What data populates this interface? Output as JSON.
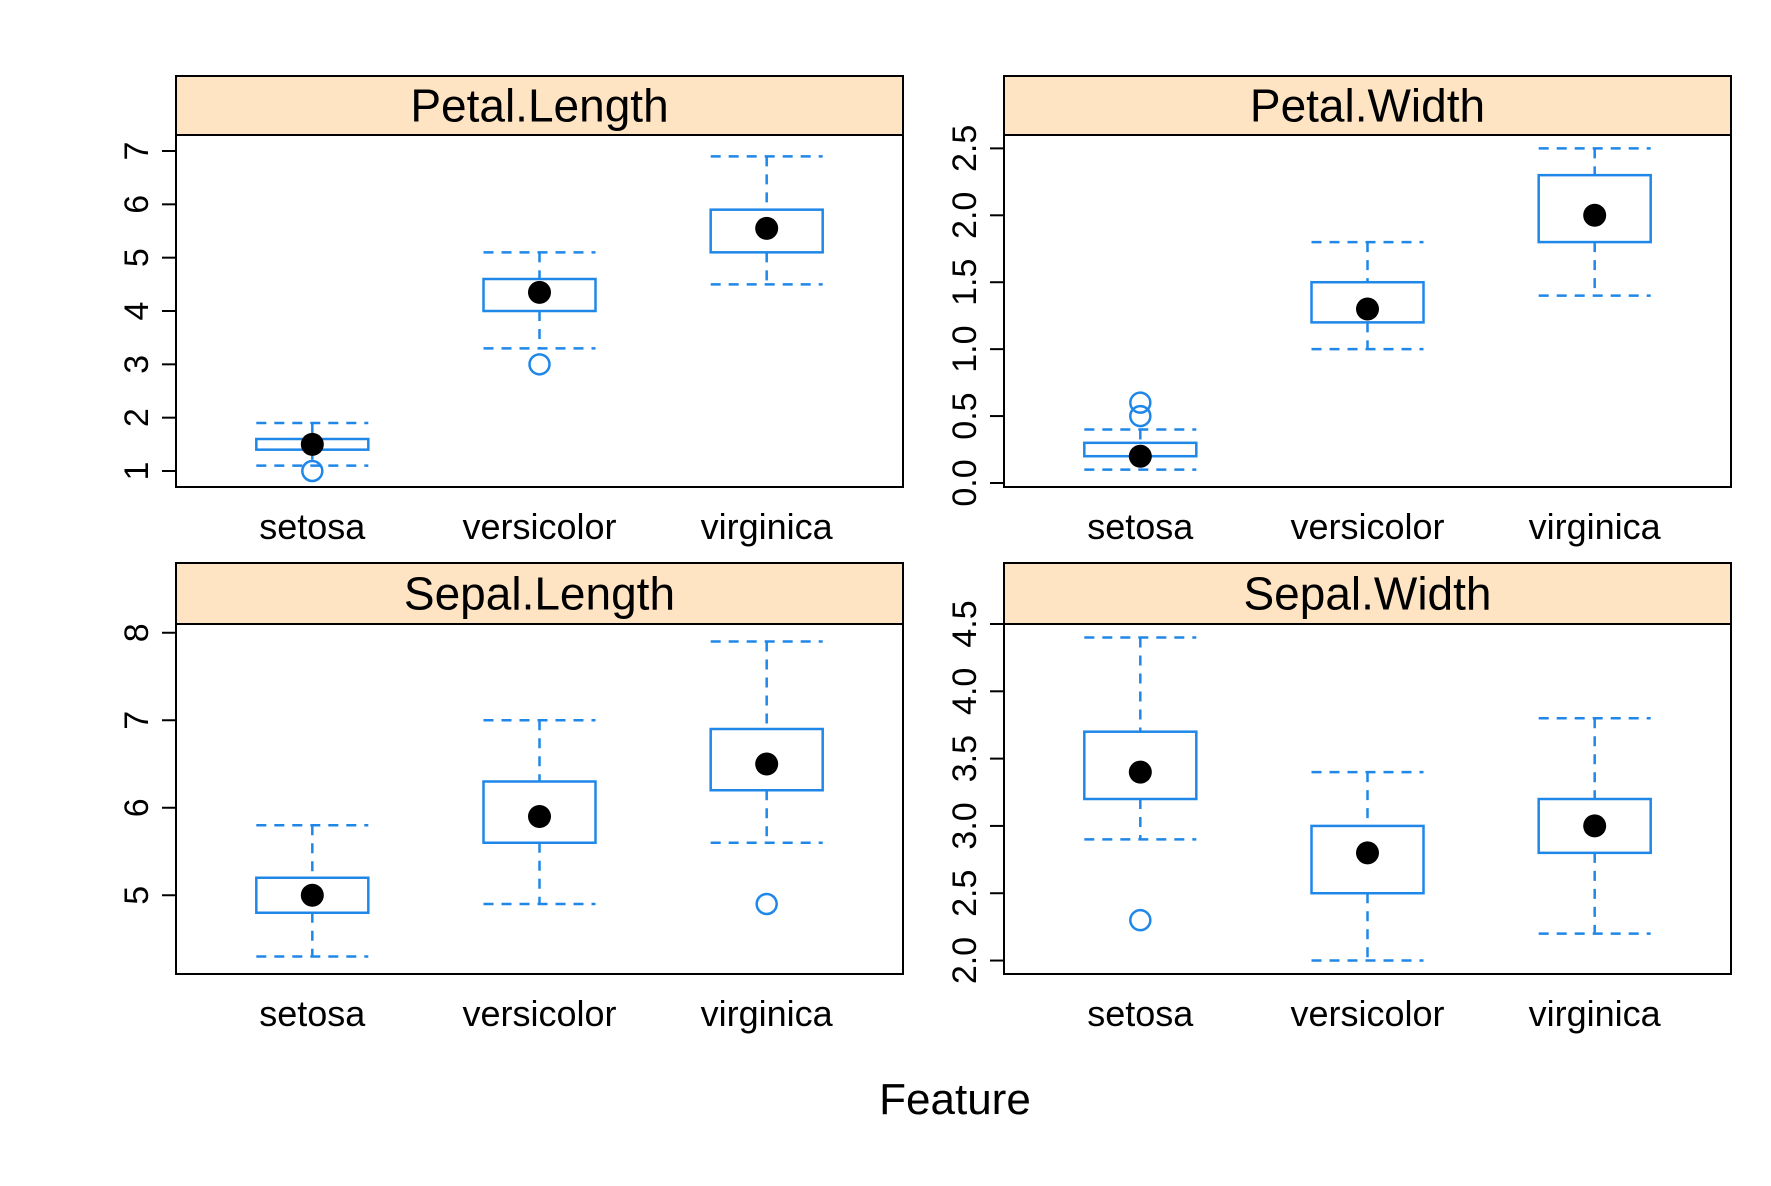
{
  "chart_data": {
    "type": "box",
    "xlabel": "Feature",
    "categories": [
      "setosa",
      "versicolor",
      "virginica"
    ],
    "colors": {
      "box": "#1f87e8",
      "median_dot": "#000000",
      "strip_fill": "#ffe4c4",
      "frame": "#000000"
    },
    "panels": [
      {
        "title": "Petal.Length",
        "ylim": [
          0.7,
          7.3
        ],
        "yticks": [
          1,
          2,
          3,
          4,
          5,
          6,
          7
        ],
        "yticklabels": [
          "1",
          "2",
          "3",
          "4",
          "5",
          "6",
          "7"
        ],
        "boxes": [
          {
            "category": "setosa",
            "whisker_low": 1.1,
            "q1": 1.4,
            "median": 1.5,
            "q3": 1.6,
            "whisker_high": 1.9,
            "outliers": [
              1.0
            ]
          },
          {
            "category": "versicolor",
            "whisker_low": 3.3,
            "q1": 4.0,
            "median": 4.35,
            "q3": 4.6,
            "whisker_high": 5.1,
            "outliers": [
              3.0
            ]
          },
          {
            "category": "virginica",
            "whisker_low": 4.5,
            "q1": 5.1,
            "median": 5.55,
            "q3": 5.9,
            "whisker_high": 6.9,
            "outliers": []
          }
        ]
      },
      {
        "title": "Petal.Width",
        "ylim": [
          -0.03,
          2.6
        ],
        "yticks": [
          0.0,
          0.5,
          1.0,
          1.5,
          2.0,
          2.5
        ],
        "yticklabels": [
          "0.0",
          "0.5",
          "1.0",
          "1.5",
          "2.0",
          "2.5"
        ],
        "boxes": [
          {
            "category": "setosa",
            "whisker_low": 0.1,
            "q1": 0.2,
            "median": 0.2,
            "q3": 0.3,
            "whisker_high": 0.4,
            "outliers": [
              0.5,
              0.6
            ]
          },
          {
            "category": "versicolor",
            "whisker_low": 1.0,
            "q1": 1.2,
            "median": 1.3,
            "q3": 1.5,
            "whisker_high": 1.8,
            "outliers": []
          },
          {
            "category": "virginica",
            "whisker_low": 1.4,
            "q1": 1.8,
            "median": 2.0,
            "q3": 2.3,
            "whisker_high": 2.5,
            "outliers": []
          }
        ]
      },
      {
        "title": "Sepal.Length",
        "ylim": [
          4.1,
          8.1
        ],
        "yticks": [
          5,
          6,
          7,
          8
        ],
        "yticklabels": [
          "5",
          "6",
          "7",
          "8"
        ],
        "boxes": [
          {
            "category": "setosa",
            "whisker_low": 4.3,
            "q1": 4.8,
            "median": 5.0,
            "q3": 5.2,
            "whisker_high": 5.8,
            "outliers": []
          },
          {
            "category": "versicolor",
            "whisker_low": 4.9,
            "q1": 5.6,
            "median": 5.9,
            "q3": 6.3,
            "whisker_high": 7.0,
            "outliers": []
          },
          {
            "category": "virginica",
            "whisker_low": 5.6,
            "q1": 6.2,
            "median": 6.5,
            "q3": 6.9,
            "whisker_high": 7.9,
            "outliers": [
              4.9
            ]
          }
        ]
      },
      {
        "title": "Sepal.Width",
        "ylim": [
          1.9,
          4.5
        ],
        "yticks": [
          2.0,
          2.5,
          3.0,
          3.5,
          4.0,
          4.5
        ],
        "yticklabels": [
          "2.0",
          "2.5",
          "3.0",
          "3.5",
          "4.0",
          "4.5"
        ],
        "boxes": [
          {
            "category": "setosa",
            "whisker_low": 2.9,
            "q1": 3.2,
            "median": 3.4,
            "q3": 3.7,
            "whisker_high": 4.4,
            "outliers": [
              2.3
            ]
          },
          {
            "category": "versicolor",
            "whisker_low": 2.0,
            "q1": 2.5,
            "median": 2.8,
            "q3": 3.0,
            "whisker_high": 3.4,
            "outliers": []
          },
          {
            "category": "virginica",
            "whisker_low": 2.2,
            "q1": 2.8,
            "median": 3.0,
            "q3": 3.2,
            "whisker_high": 3.8,
            "outliers": []
          }
        ]
      }
    ]
  }
}
